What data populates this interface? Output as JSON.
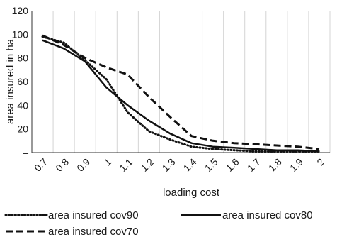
{
  "chart_data": {
    "type": "line",
    "title": "",
    "xlabel": "loading cost",
    "ylabel": "area insured in ha",
    "x": [
      "0.7",
      "0.8",
      "0.9",
      "1",
      "1.1",
      "1.2",
      "1.3",
      "1.4",
      "1.5",
      "1.6",
      "1.7",
      "1.8",
      "1.9",
      "2"
    ],
    "y_ticks": [
      "–",
      "20",
      "40",
      "60",
      "80",
      "100",
      "120"
    ],
    "ylim": [
      0,
      120
    ],
    "grid": "vertical",
    "legend": "bottom",
    "series": [
      {
        "name": "area insured cov90",
        "style": "dotted",
        "values": [
          98,
          93,
          78,
          62,
          34,
          18,
          11,
          5,
          3,
          2,
          1,
          1,
          1,
          1
        ]
      },
      {
        "name": "area insured cov80",
        "style": "solid",
        "values": [
          95,
          88,
          77,
          55,
          40,
          27,
          16,
          8,
          5,
          4,
          3,
          2,
          2,
          1
        ]
      },
      {
        "name": "area insured cov70",
        "style": "dashed",
        "values": [
          99,
          91,
          80,
          72,
          66,
          47,
          30,
          14,
          10,
          8,
          7,
          6,
          5,
          3
        ]
      }
    ]
  }
}
